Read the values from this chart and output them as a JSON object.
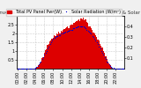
{
  "title": "Solar PV/Inverter Performance",
  "subtitle": "Total PV Panel Power Output & Solar Radiation",
  "bg_color": "#f0f0f0",
  "plot_bg_color": "#ffffff",
  "grid_color": "#cccccc",
  "bar_color": "#dd0000",
  "dot_color": "#0000cc",
  "n_bars": 96,
  "bar_heights_noisy": [
    0,
    0,
    0,
    0,
    0,
    0,
    0,
    0,
    0,
    0,
    0,
    0,
    0,
    0,
    0,
    0,
    0.02,
    0.04,
    0.09,
    0.2,
    0.3,
    0.38,
    0.6,
    0.65,
    0.9,
    1.05,
    1.1,
    1.35,
    1.38,
    1.55,
    1.58,
    1.72,
    1.75,
    1.88,
    1.85,
    2.0,
    1.95,
    2.1,
    2.0,
    2.15,
    2.1,
    2.2,
    2.25,
    2.3,
    2.35,
    2.4,
    2.3,
    2.45,
    2.5,
    2.48,
    2.6,
    2.62,
    2.65,
    2.7,
    2.75,
    2.8,
    2.72,
    2.85,
    2.78,
    2.9,
    2.75,
    2.78,
    2.65,
    2.6,
    2.42,
    2.38,
    2.28,
    2.18,
    2.05,
    2.0,
    1.88,
    1.78,
    1.65,
    1.58,
    1.42,
    1.32,
    1.18,
    1.0,
    0.88,
    0.72,
    0.55,
    0.42,
    0.32,
    0.2,
    0.12,
    0.06,
    0.02,
    0,
    0,
    0,
    0,
    0,
    0,
    0,
    0,
    0
  ],
  "dot_values": [
    0,
    0,
    0,
    0,
    0,
    0,
    0,
    0,
    0,
    0,
    0,
    0,
    0,
    0,
    0,
    0,
    0.008,
    0.015,
    0.025,
    0.04,
    0.055,
    0.07,
    0.09,
    0.11,
    0.13,
    0.15,
    0.17,
    0.19,
    0.21,
    0.23,
    0.25,
    0.27,
    0.28,
    0.29,
    0.3,
    0.31,
    0.31,
    0.32,
    0.32,
    0.33,
    0.33,
    0.34,
    0.34,
    0.35,
    0.35,
    0.36,
    0.36,
    0.37,
    0.37,
    0.37,
    0.38,
    0.38,
    0.39,
    0.39,
    0.4,
    0.4,
    0.4,
    0.4,
    0.4,
    0.4,
    0.39,
    0.38,
    0.37,
    0.36,
    0.35,
    0.34,
    0.33,
    0.31,
    0.3,
    0.28,
    0.27,
    0.25,
    0.23,
    0.21,
    0.19,
    0.17,
    0.15,
    0.13,
    0.11,
    0.09,
    0.07,
    0.055,
    0.04,
    0.028,
    0.018,
    0.01,
    0.005,
    0,
    0,
    0,
    0,
    0,
    0,
    0,
    0,
    0
  ],
  "ylim_left": [
    0,
    3.0
  ],
  "ylim_right": [
    0,
    0.5
  ],
  "yticks_left": [
    0.5,
    1.0,
    1.5,
    2.0,
    2.5
  ],
  "yticks_right": [
    0.1,
    0.2,
    0.3,
    0.4
  ],
  "ytick_labels_left": [
    "0.5",
    "1",
    "1.5",
    "2",
    "2.5"
  ],
  "ytick_labels_right": [
    "0.1",
    "0.2",
    "0.3",
    "0.4"
  ],
  "xtick_step": 8,
  "title_fontsize": 4.0,
  "tick_fontsize": 3.5,
  "legend_fontsize": 3.5,
  "legend_label_pv": "Total PV Panel Pwr(W)",
  "legend_label_rad": "Solar Radiation (W/m²)"
}
